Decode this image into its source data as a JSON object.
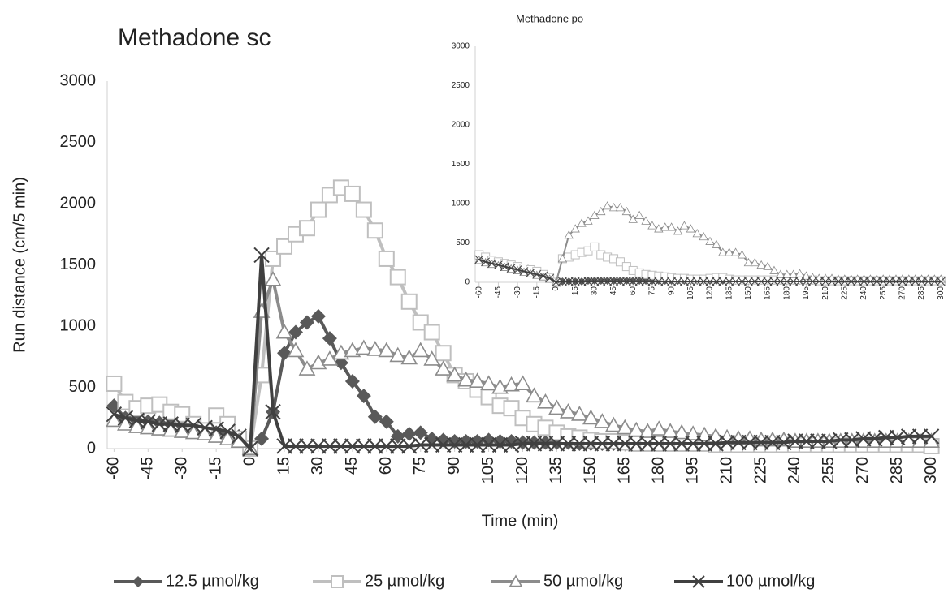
{
  "chart_data": [
    {
      "type": "line",
      "title": "Methadone sc",
      "x_label": "Time (min)",
      "y_label": "Run distance (cm/5 min)",
      "x": [
        -60,
        -55,
        -50,
        -45,
        -40,
        -35,
        -30,
        -25,
        -20,
        -15,
        -10,
        -5,
        0,
        5,
        10,
        15,
        20,
        25,
        30,
        35,
        40,
        45,
        50,
        55,
        60,
        65,
        70,
        75,
        80,
        85,
        90,
        95,
        100,
        105,
        110,
        115,
        120,
        125,
        130,
        135,
        140,
        145,
        150,
        155,
        160,
        165,
        170,
        175,
        180,
        185,
        190,
        195,
        200,
        205,
        210,
        215,
        220,
        225,
        230,
        235,
        240,
        245,
        250,
        255,
        260,
        265,
        270,
        275,
        280,
        285,
        290,
        295,
        300
      ],
      "xlim": [
        -63,
        303
      ],
      "xticks": [
        -60,
        -45,
        -30,
        -15,
        0,
        15,
        30,
        45,
        60,
        75,
        90,
        105,
        120,
        135,
        150,
        165,
        180,
        195,
        210,
        225,
        240,
        255,
        270,
        285,
        300
      ],
      "ylim": [
        0,
        3000
      ],
      "yticks": [
        0,
        500,
        1000,
        1500,
        2000,
        2500,
        3000
      ],
      "grid": false,
      "legend": "bottom",
      "series": [
        {
          "name": "12.5 µmol/kg",
          "color": "#595959",
          "marker": "diamond",
          "values": [
            350,
            250,
            230,
            220,
            210,
            200,
            190,
            170,
            150,
            130,
            120,
            100,
            0,
            80,
            300,
            780,
            950,
            1030,
            1080,
            900,
            700,
            550,
            430,
            260,
            220,
            100,
            120,
            130,
            80,
            70,
            60,
            60,
            60,
            70,
            60,
            60,
            50,
            50,
            50,
            50,
            50,
            40,
            40,
            40,
            40,
            40,
            40,
            40,
            40,
            40,
            40,
            40,
            40,
            40,
            40,
            40,
            40,
            40,
            40,
            40,
            40,
            40,
            40,
            40,
            40,
            40,
            40,
            40,
            40,
            40,
            40,
            40,
            40
          ]
        },
        {
          "name": "25 µmol/kg",
          "color": "#bfbfbf",
          "marker": "square",
          "values": [
            530,
            380,
            330,
            350,
            360,
            300,
            280,
            200,
            150,
            270,
            200,
            80,
            0,
            600,
            1550,
            1650,
            1750,
            1800,
            1950,
            2070,
            2130,
            2080,
            1950,
            1780,
            1550,
            1400,
            1200,
            1030,
            950,
            780,
            600,
            550,
            480,
            420,
            350,
            330,
            250,
            200,
            170,
            130,
            100,
            90,
            70,
            60,
            60,
            50,
            40,
            40,
            40,
            40,
            40,
            40,
            40,
            30,
            30,
            30,
            30,
            30,
            30,
            30,
            30,
            30,
            30,
            30,
            30,
            30,
            30,
            30,
            30,
            30,
            30,
            30,
            20
          ]
        },
        {
          "name": "50 µmol/kg",
          "color": "#8c8c8c",
          "marker": "triangle",
          "values": [
            230,
            200,
            180,
            170,
            160,
            150,
            140,
            130,
            120,
            100,
            80,
            60,
            0,
            1120,
            1380,
            950,
            800,
            650,
            700,
            730,
            780,
            800,
            820,
            810,
            800,
            760,
            740,
            800,
            730,
            650,
            600,
            560,
            550,
            530,
            500,
            520,
            530,
            430,
            380,
            330,
            300,
            280,
            250,
            220,
            190,
            170,
            150,
            140,
            160,
            140,
            130,
            120,
            110,
            100,
            90,
            80,
            80,
            70,
            70,
            70,
            60,
            60,
            60,
            60,
            60,
            60,
            60,
            60,
            60,
            60,
            60,
            60,
            60
          ]
        },
        {
          "name": "100 µmol/kg",
          "color": "#404040",
          "marker": "x",
          "values": [
            280,
            250,
            230,
            220,
            200,
            200,
            190,
            190,
            170,
            160,
            140,
            100,
            0,
            1580,
            300,
            20,
            20,
            20,
            20,
            20,
            20,
            20,
            20,
            20,
            20,
            20,
            20,
            30,
            30,
            30,
            30,
            30,
            30,
            30,
            30,
            30,
            40,
            40,
            40,
            40,
            40,
            40,
            40,
            40,
            40,
            40,
            40,
            40,
            40,
            40,
            40,
            40,
            40,
            40,
            50,
            50,
            50,
            50,
            50,
            50,
            60,
            60,
            60,
            60,
            70,
            70,
            80,
            80,
            90,
            90,
            100,
            100,
            100
          ]
        }
      ]
    },
    {
      "type": "line",
      "title": "Methadone po",
      "x": [
        -60,
        -55,
        -50,
        -45,
        -40,
        -35,
        -30,
        -25,
        -20,
        -15,
        -10,
        -5,
        0,
        5,
        10,
        15,
        20,
        25,
        30,
        35,
        40,
        45,
        50,
        55,
        60,
        65,
        70,
        75,
        80,
        85,
        90,
        95,
        100,
        105,
        110,
        115,
        120,
        125,
        130,
        135,
        140,
        145,
        150,
        155,
        160,
        165,
        170,
        175,
        180,
        185,
        190,
        195,
        200,
        205,
        210,
        215,
        220,
        225,
        230,
        235,
        240,
        245,
        250,
        255,
        260,
        265,
        270,
        275,
        280,
        285,
        290,
        295,
        300
      ],
      "xlim": [
        -63,
        303
      ],
      "xticks": [
        -60,
        -45,
        -30,
        -15,
        0,
        15,
        30,
        45,
        60,
        75,
        90,
        105,
        120,
        135,
        150,
        165,
        180,
        195,
        210,
        225,
        240,
        255,
        270,
        285,
        300
      ],
      "ylim": [
        0,
        3000
      ],
      "yticks": [
        0,
        500,
        1000,
        1500,
        2000,
        2500,
        3000
      ],
      "grid": false,
      "series": [
        {
          "color": "#595959",
          "marker": "diamond",
          "values": [
            300,
            260,
            240,
            220,
            200,
            190,
            170,
            150,
            130,
            110,
            90,
            60,
            0,
            10,
            10,
            10,
            10,
            20,
            20,
            20,
            20,
            20,
            20,
            20,
            20,
            20,
            20,
            20,
            20,
            20,
            20,
            20,
            20,
            20,
            20,
            20,
            20,
            20,
            20,
            20,
            20,
            20,
            20,
            20,
            20,
            20,
            20,
            20,
            20,
            20,
            20,
            20,
            20,
            20,
            20,
            20,
            20,
            20,
            20,
            20,
            20,
            20,
            20,
            20,
            20,
            20,
            20,
            20,
            20,
            20,
            20,
            20,
            20
          ]
        },
        {
          "color": "#bfbfbf",
          "marker": "square",
          "values": [
            350,
            320,
            280,
            260,
            240,
            220,
            200,
            180,
            160,
            140,
            100,
            60,
            0,
            300,
            320,
            350,
            380,
            400,
            450,
            350,
            320,
            300,
            260,
            200,
            150,
            120,
            100,
            90,
            80,
            70,
            60,
            50,
            50,
            40,
            40,
            40,
            50,
            60,
            60,
            40,
            30,
            30,
            30,
            30,
            30,
            30,
            30,
            30,
            30,
            30,
            30,
            30,
            30,
            20,
            20,
            20,
            20,
            20,
            20,
            20,
            20,
            20,
            20,
            20,
            20,
            20,
            20,
            20,
            20,
            20,
            20,
            20,
            20
          ]
        },
        {
          "color": "#8c8c8c",
          "marker": "triangle",
          "values": [
            280,
            250,
            230,
            210,
            190,
            170,
            150,
            130,
            110,
            90,
            70,
            40,
            0,
            300,
            600,
            680,
            750,
            780,
            850,
            900,
            970,
            950,
            950,
            900,
            800,
            850,
            780,
            720,
            680,
            700,
            700,
            650,
            720,
            680,
            620,
            580,
            520,
            480,
            380,
            380,
            380,
            350,
            250,
            250,
            220,
            200,
            150,
            100,
            100,
            100,
            110,
            80,
            60,
            50,
            50,
            50,
            40,
            40,
            40,
            40,
            40,
            40,
            40,
            40,
            40,
            40,
            40,
            40,
            40,
            40,
            40,
            40,
            40
          ]
        },
        {
          "color": "#404040",
          "marker": "x",
          "values": [
            290,
            260,
            240,
            220,
            200,
            180,
            160,
            140,
            120,
            100,
            80,
            50,
            0,
            10,
            10,
            10,
            10,
            10,
            10,
            10,
            10,
            10,
            10,
            10,
            10,
            10,
            10,
            10,
            10,
            10,
            10,
            10,
            10,
            10,
            10,
            10,
            10,
            10,
            10,
            10,
            10,
            10,
            10,
            10,
            10,
            10,
            10,
            10,
            10,
            10,
            10,
            10,
            10,
            10,
            10,
            10,
            10,
            10,
            10,
            10,
            10,
            10,
            10,
            10,
            10,
            10,
            10,
            10,
            10,
            10,
            10,
            10,
            10
          ]
        }
      ]
    }
  ]
}
